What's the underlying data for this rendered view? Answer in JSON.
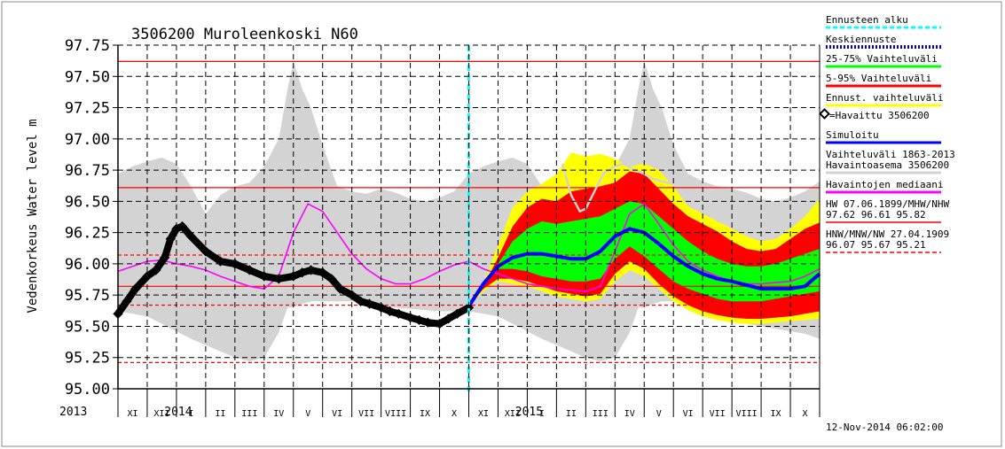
{
  "title": "3506200 Muroleenkoski N60",
  "timestamp": "12-Nov-2014 06:02:00",
  "colors": {
    "observed": "#000000",
    "simulated": "#0000ff",
    "median": "#ff00ff",
    "range_5_95": "#ff0000",
    "range_25_75": "#00ff00",
    "forecast_range": "#ffff00",
    "historical_range": "#d3d3d3",
    "forecast_start": "#00ffff",
    "reference_lines": "#ff0000"
  },
  "legend": [
    {
      "text": "Ennusteen alku",
      "color": "#00ffff",
      "style": "dashed"
    },
    {
      "text": "Keskiennuste",
      "color": "#0000ff",
      "style": "dotted"
    },
    {
      "text": "25-75% Vaihteluväli",
      "color": "#00ff00",
      "style": "solid"
    },
    {
      "text": "5-95% Vaihteluväli",
      "color": "#ff0000",
      "style": "solid"
    },
    {
      "text": "Ennust. vaihteluväli",
      "color": "#ffff00",
      "style": "solid"
    },
    {
      "text": "=Havaittu 3506200",
      "color": "#000000",
      "style": "marker"
    },
    {
      "text": "Simuloitu",
      "color": "#0000ff",
      "style": "solid"
    },
    {
      "text": "Vaihteluväli 1863-2013",
      "color": "#d3d3d3",
      "style": "none"
    },
    {
      "text": "Havaintoasema 3506200",
      "color": "#d3d3d3",
      "style": "solid"
    },
    {
      "text": "Havaintojen mediaani",
      "color": "#ff00ff",
      "style": "solid"
    },
    {
      "text": "HW 07.06.1899/MHW/NHW",
      "color": "#ff0000",
      "style": "none"
    },
    {
      "text": "97.62 96.61 95.82",
      "color": "#ff0000",
      "style": "solid"
    },
    {
      "text": "HNW/MNW/NW 27.04.1909",
      "color": "#ff0000",
      "style": "none"
    },
    {
      "text": "96.07 95.67 95.21",
      "color": "#ff0000",
      "style": "dashed"
    }
  ],
  "chart_data": {
    "type": "line",
    "title": "3506200 Muroleenkoski N60",
    "ylabel": "Vedenkorkeus Water level m",
    "ylim": [
      95.0,
      97.75
    ],
    "yticks": [
      "95.00",
      "95.25",
      "95.50",
      "95.75",
      "96.00",
      "96.25",
      "96.50",
      "96.75",
      "97.00",
      "97.25",
      "97.50",
      "97.75"
    ],
    "xlim": [
      0,
      24
    ],
    "x_year_labels": [
      {
        "label": "2013",
        "x": 0
      },
      {
        "label": "2014",
        "x": 2
      },
      {
        "label": "2015",
        "x": 14
      }
    ],
    "x_month_labels": [
      "XI",
      "XII",
      "I",
      "II",
      "III",
      "IV",
      "V",
      "VI",
      "VII",
      "VIII",
      "IX",
      "X",
      "XI",
      "XII",
      "I",
      "II",
      "III",
      "IV",
      "V",
      "VI",
      "VII",
      "VIII",
      "IX",
      "X"
    ],
    "forecast_start_x": 12.0,
    "grid": true,
    "reference_lines_solid": [
      97.62,
      96.61,
      95.82
    ],
    "reference_lines_dashed": [
      96.07,
      95.67,
      95.21
    ],
    "historical_range": {
      "x": [
        0,
        0.5,
        1,
        1.5,
        2,
        2.5,
        3,
        3.5,
        4,
        4.5,
        5,
        5.5,
        5.8,
        6,
        6.3,
        6.6,
        7,
        7.5,
        8,
        8.5,
        9,
        9.5,
        10,
        10.5,
        11,
        11.5,
        12,
        12.5,
        13,
        13.5,
        14,
        14.5,
        15,
        15.5,
        16,
        16.5,
        17,
        17.5,
        17.8,
        18,
        18.3,
        18.6,
        19,
        19.5,
        20,
        20.5,
        21,
        21.5,
        22,
        22.5,
        23,
        23.5,
        24
      ],
      "upper": [
        96.72,
        96.78,
        96.82,
        96.85,
        96.8,
        96.62,
        96.4,
        96.55,
        96.62,
        96.65,
        96.78,
        97.0,
        97.4,
        97.62,
        97.4,
        97.25,
        96.95,
        96.62,
        96.58,
        96.56,
        96.6,
        96.57,
        96.52,
        96.5,
        96.53,
        96.58,
        96.72,
        96.78,
        96.82,
        96.85,
        96.8,
        96.62,
        96.4,
        96.55,
        96.62,
        96.65,
        96.78,
        97.0,
        97.4,
        97.62,
        97.4,
        97.25,
        96.95,
        96.72,
        96.66,
        96.62,
        96.6,
        96.57,
        96.52,
        96.5,
        96.53,
        96.58,
        96.66
      ],
      "lower": [
        95.62,
        95.6,
        95.58,
        95.52,
        95.46,
        95.4,
        95.35,
        95.3,
        95.25,
        95.22,
        95.25,
        95.45,
        95.65,
        95.65,
        95.68,
        95.7,
        95.7,
        95.7,
        95.7,
        95.68,
        95.66,
        95.65,
        95.64,
        95.63,
        95.62,
        95.62,
        95.62,
        95.6,
        95.58,
        95.52,
        95.46,
        95.4,
        95.35,
        95.3,
        95.25,
        95.22,
        95.25,
        95.45,
        95.65,
        95.65,
        95.68,
        95.7,
        95.7,
        95.7,
        95.68,
        95.62,
        95.56,
        95.52,
        95.5,
        95.48,
        95.46,
        95.44,
        95.4
      ]
    },
    "forecast_range": {
      "x": [
        12,
        12.5,
        13,
        13.5,
        14,
        14.5,
        15,
        15.5,
        16,
        16.5,
        17,
        17.5,
        18,
        18.5,
        19,
        19.5,
        20,
        20.5,
        21,
        21.5,
        22,
        22.5,
        23,
        23.5,
        24
      ],
      "upper": [
        95.66,
        95.85,
        96.15,
        96.45,
        96.58,
        96.64,
        96.72,
        96.89,
        96.86,
        96.88,
        96.84,
        96.78,
        96.8,
        96.75,
        96.62,
        96.46,
        96.4,
        96.34,
        96.28,
        96.22,
        96.18,
        96.2,
        96.28,
        96.38,
        96.52
      ],
      "lower": [
        95.66,
        95.78,
        95.86,
        95.84,
        95.82,
        95.78,
        95.74,
        95.72,
        95.7,
        95.72,
        95.86,
        95.95,
        95.9,
        95.8,
        95.7,
        95.63,
        95.58,
        95.55,
        95.53,
        95.52,
        95.52,
        95.53,
        95.54,
        95.55,
        95.56
      ]
    },
    "range_5_95": {
      "x": [
        12,
        12.5,
        13,
        13.5,
        14,
        14.5,
        15,
        15.5,
        16,
        16.5,
        17,
        17.5,
        18,
        18.5,
        19,
        19.5,
        20,
        20.5,
        21,
        21.5,
        22,
        22.5,
        23,
        23.5,
        24
      ],
      "upper": [
        95.66,
        95.82,
        96.05,
        96.3,
        96.45,
        96.52,
        96.5,
        96.58,
        96.6,
        96.62,
        96.65,
        96.74,
        96.72,
        96.6,
        96.48,
        96.38,
        96.32,
        96.26,
        96.18,
        96.12,
        96.1,
        96.12,
        96.2,
        96.28,
        96.33
      ],
      "lower": [
        95.66,
        95.8,
        95.88,
        95.88,
        95.86,
        95.82,
        95.78,
        95.76,
        95.74,
        95.76,
        95.92,
        96.02,
        95.96,
        95.84,
        95.74,
        95.67,
        95.62,
        95.59,
        95.57,
        95.56,
        95.56,
        95.57,
        95.58,
        95.6,
        95.62
      ]
    },
    "range_25_75": {
      "x": [
        12,
        12.5,
        13,
        13.5,
        14,
        14.5,
        15,
        15.5,
        16,
        16.5,
        17,
        17.5,
        18,
        18.5,
        19,
        19.5,
        20,
        20.5,
        21,
        21.5,
        22,
        22.5,
        23,
        23.5,
        24
      ],
      "upper": [
        95.66,
        95.84,
        96.0,
        96.18,
        96.28,
        96.34,
        96.32,
        96.34,
        96.36,
        96.38,
        96.44,
        96.5,
        96.48,
        96.38,
        96.28,
        96.18,
        96.1,
        96.04,
        96.0,
        95.98,
        95.98,
        96.0,
        96.04,
        96.08,
        96.12
      ],
      "lower": [
        95.66,
        95.84,
        95.96,
        95.96,
        95.94,
        95.9,
        95.88,
        95.86,
        95.86,
        95.88,
        96.04,
        96.14,
        96.06,
        95.96,
        95.86,
        95.8,
        95.76,
        95.72,
        95.7,
        95.7,
        95.7,
        95.72,
        95.74,
        95.76,
        95.78
      ]
    },
    "series": [
      {
        "name": "=Havaittu 3506200",
        "color": "#000000",
        "x": [
          0,
          0.3,
          0.6,
          1,
          1.3,
          1.6,
          1.8,
          2,
          2.2,
          2.5,
          3,
          3.5,
          4,
          4.5,
          5,
          5.5,
          6,
          6.3,
          6.6,
          7,
          7.3,
          7.6,
          8,
          8.3,
          8.6,
          9,
          9.3,
          9.6,
          10,
          10.3,
          10.6,
          11,
          11.3,
          11.6,
          12
        ],
        "y": [
          95.6,
          95.7,
          95.8,
          95.9,
          95.95,
          96.05,
          96.2,
          96.28,
          96.3,
          96.22,
          96.1,
          96.02,
          96.0,
          95.95,
          95.9,
          95.88,
          95.9,
          95.93,
          95.95,
          95.93,
          95.88,
          95.8,
          95.75,
          95.7,
          95.68,
          95.65,
          95.62,
          95.6,
          95.57,
          95.55,
          95.53,
          95.52,
          95.56,
          95.6,
          95.65
        ]
      },
      {
        "name": "Simuloitu",
        "color": "#0000ff",
        "x": [
          12,
          12.5,
          13,
          13.5,
          14,
          14.5,
          15,
          15.5,
          16,
          16.5,
          17,
          17.5,
          18,
          18.5,
          19,
          19.5,
          20,
          20.5,
          21,
          21.5,
          22,
          22.5,
          23,
          23.5,
          24
        ],
        "y": [
          95.66,
          95.84,
          95.98,
          96.05,
          96.08,
          96.08,
          96.06,
          96.04,
          96.04,
          96.1,
          96.22,
          96.28,
          96.25,
          96.16,
          96.06,
          95.98,
          95.92,
          95.88,
          95.86,
          95.83,
          95.8,
          95.8,
          95.8,
          95.82,
          95.92
        ]
      },
      {
        "name": "Havaintojen mediaani",
        "color": "#ff00ff",
        "x": [
          0,
          0.5,
          1,
          1.5,
          2,
          2.5,
          3,
          3.5,
          4,
          4.5,
          5,
          5.5,
          6,
          6.5,
          7,
          7.5,
          8,
          8.5,
          9,
          9.5,
          10,
          10.5,
          11,
          11.5,
          12,
          12.5,
          13,
          13.5,
          14,
          14.5,
          15,
          15.5,
          16,
          16.5,
          17,
          17.5,
          18,
          18.5,
          19,
          19.5,
          20,
          20.5,
          21,
          21.5,
          22,
          22.5,
          23,
          23.5,
          24
        ],
        "y": [
          95.94,
          95.98,
          96.02,
          96.03,
          96.0,
          95.98,
          95.95,
          95.9,
          95.86,
          95.82,
          95.8,
          95.9,
          96.25,
          96.48,
          96.42,
          96.25,
          96.08,
          95.96,
          95.88,
          95.84,
          95.84,
          95.88,
          95.94,
          95.99,
          96.02,
          95.96,
          95.92,
          95.88,
          95.84,
          95.82,
          95.8,
          95.79,
          95.78,
          95.82,
          96.1,
          96.4,
          96.48,
          96.32,
          96.15,
          96.02,
          95.95,
          95.9,
          95.86,
          95.84,
          95.84,
          95.85,
          95.86,
          95.9,
          95.96
        ]
      }
    ],
    "overlays": [
      {
        "name": "historical_upper_line_forecast",
        "color": "#d3d3d3",
        "x": [
          15.2,
          15.5,
          15.8,
          16,
          16.3,
          16.6,
          17,
          17.3,
          17.6,
          18,
          18.3,
          18.6,
          19
        ],
        "y": [
          96.8,
          96.55,
          96.42,
          96.44,
          96.58,
          96.72,
          96.78,
          96.8,
          96.76,
          96.72,
          96.68,
          96.66,
          96.64
        ]
      }
    ]
  }
}
